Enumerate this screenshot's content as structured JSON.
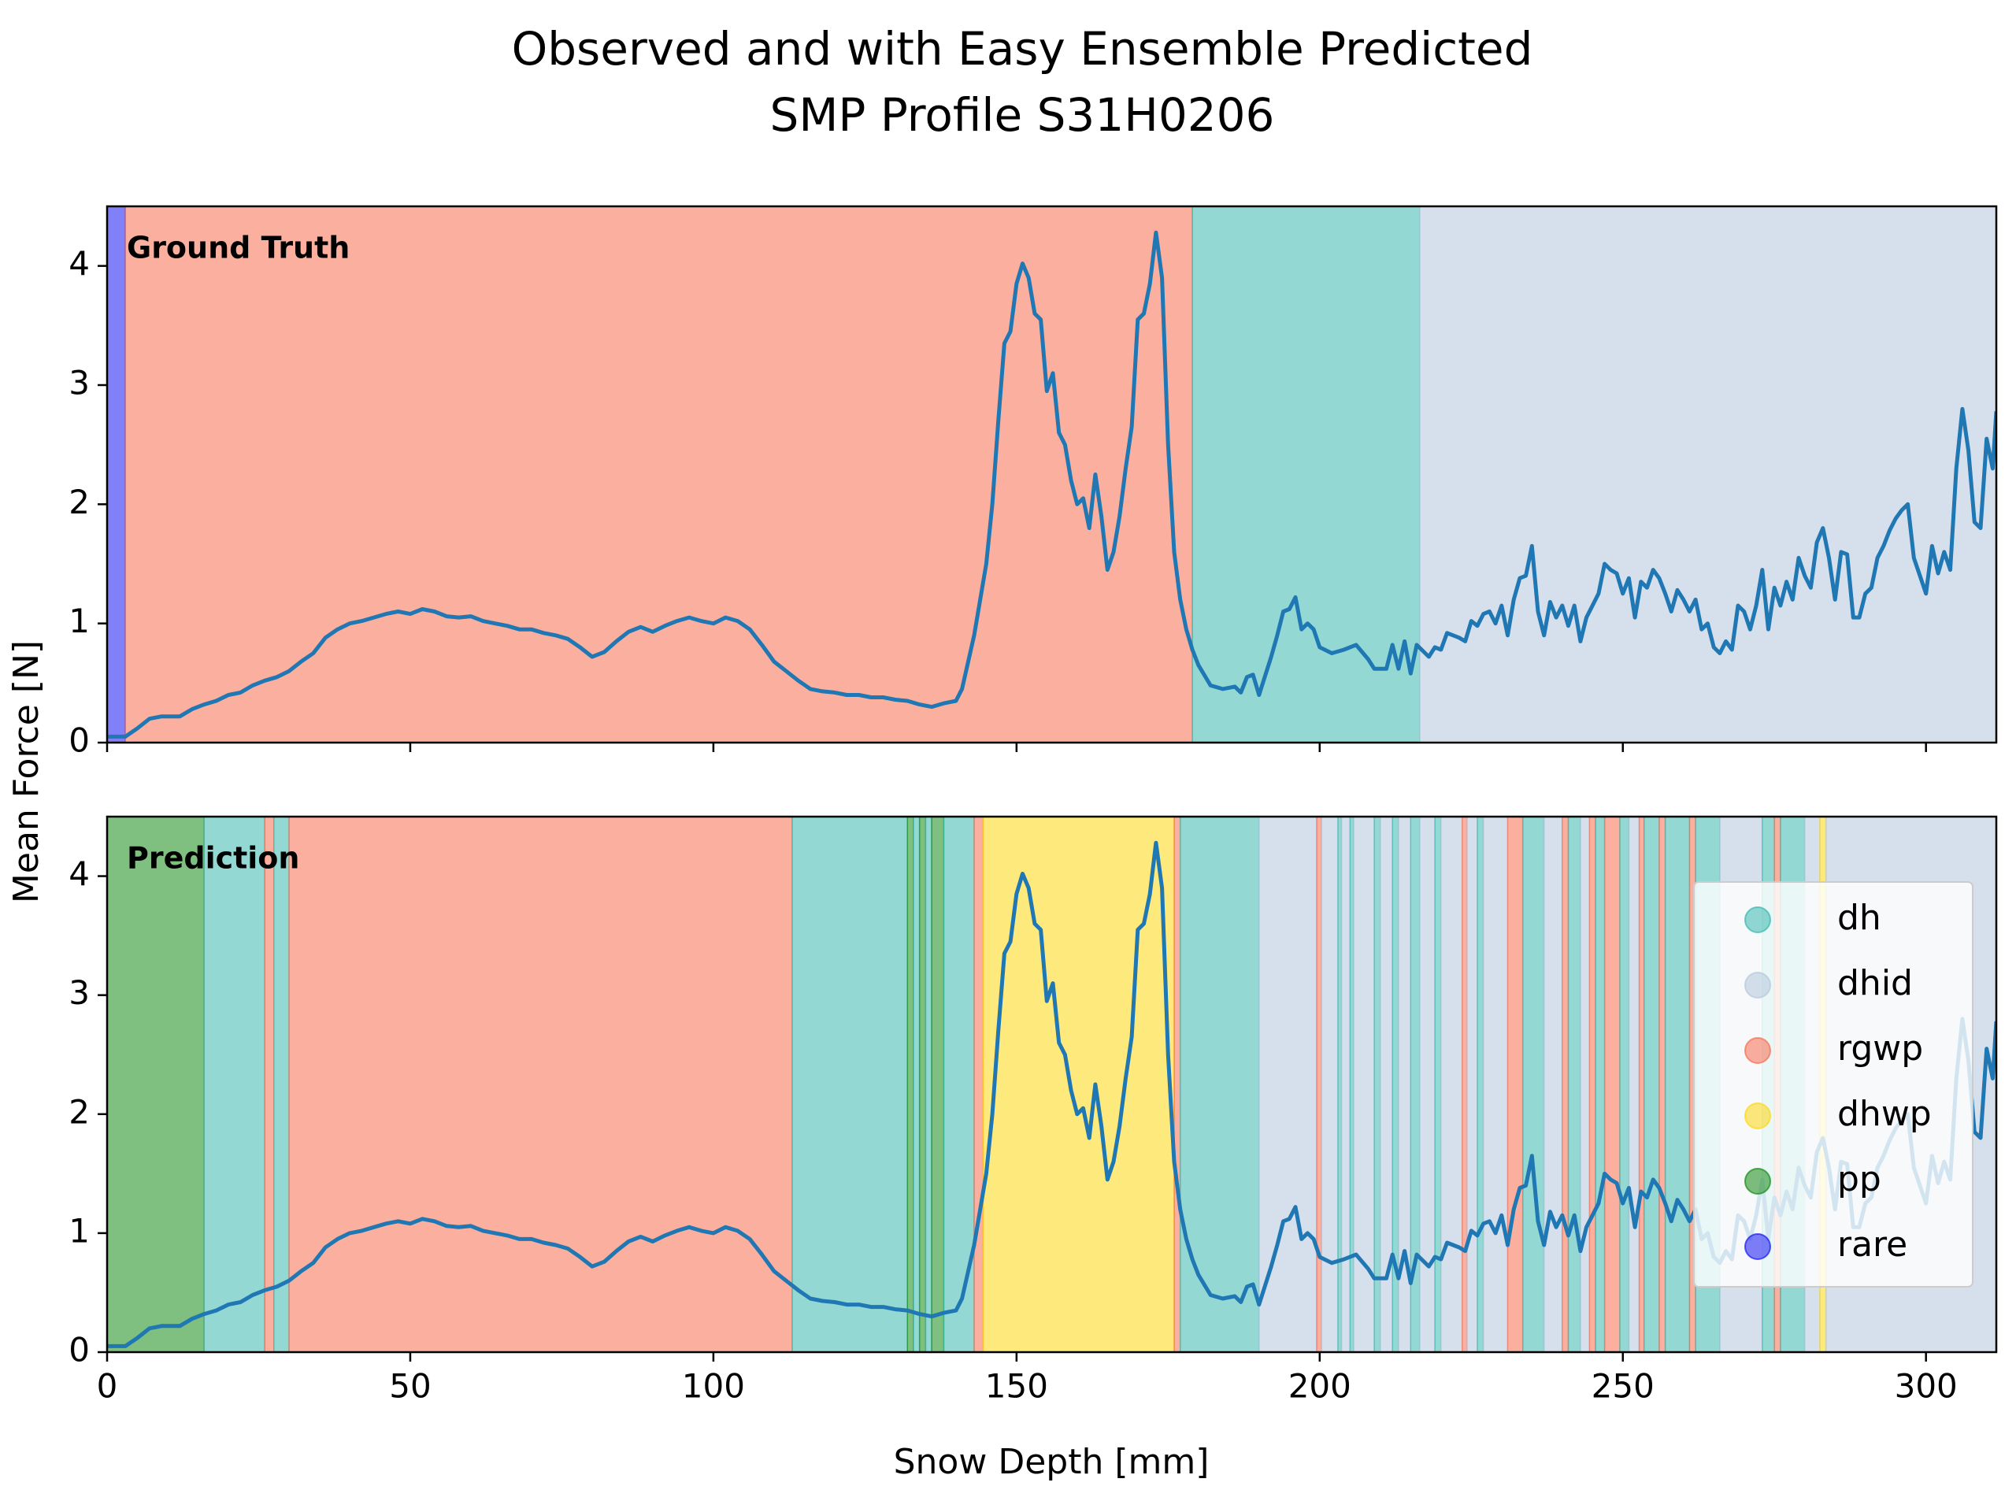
{
  "chart_data": {
    "type": "line",
    "title": "Observed and with Easy Ensemble Predicted",
    "subtitle": "SMP Profile S31H0206",
    "xlabel": "Snow Depth [mm]",
    "ylabel": "Mean Force [N]",
    "xlim": [
      0,
      311.6
    ],
    "xticks": [
      0,
      50,
      100,
      150,
      200,
      250,
      300
    ],
    "ylim": [
      0,
      4.5
    ],
    "yticks": [
      0,
      1,
      2,
      3,
      4
    ],
    "color": "#1f77b4",
    "legend_position": "center right",
    "legend": [
      {
        "name": "dh",
        "color": "#3ab8af"
      },
      {
        "name": "dhid",
        "color": "#b5c7dd"
      },
      {
        "name": "rgwp",
        "color": "#f76d50"
      },
      {
        "name": "dhwp",
        "color": "#fdd711"
      },
      {
        "name": "pp",
        "color": "#168b16"
      },
      {
        "name": "rare",
        "color": "#1818f2"
      }
    ],
    "x": [
      0,
      3,
      5,
      7,
      9,
      12,
      14,
      16,
      18,
      20,
      22,
      24,
      26,
      28,
      30,
      32,
      34,
      36,
      38,
      40,
      42,
      44,
      46,
      48,
      50,
      52,
      54,
      56,
      58,
      60,
      62,
      64,
      66,
      68,
      70,
      72,
      74,
      76,
      78,
      80,
      82,
      84,
      86,
      88,
      90,
      92,
      94,
      96,
      98,
      100,
      102,
      104,
      106,
      108,
      110,
      112,
      114,
      116,
      118,
      120,
      122,
      124,
      126,
      128,
      130,
      132,
      134,
      136,
      138,
      140,
      141,
      143,
      145,
      146,
      147,
      148,
      149,
      150,
      151,
      152,
      153,
      154,
      155,
      156,
      157,
      158,
      159,
      160,
      161,
      162,
      163,
      164,
      165,
      166,
      167,
      168,
      169,
      170,
      171,
      172,
      173,
      174,
      175,
      176,
      177,
      178,
      179,
      180,
      182,
      184,
      186,
      187,
      188,
      189,
      190,
      192,
      193,
      194,
      195,
      196,
      197,
      198,
      199,
      200,
      202,
      204,
      206,
      208,
      209,
      211,
      212,
      213,
      214,
      215,
      216,
      218,
      219,
      220,
      221,
      223,
      224,
      225,
      226,
      227,
      228,
      229,
      230,
      231,
      232,
      233,
      234,
      235,
      236,
      237,
      238,
      239,
      240,
      241,
      242,
      243,
      244,
      245,
      246,
      247,
      248,
      249,
      250,
      251,
      252,
      253,
      254,
      255,
      256,
      257,
      258,
      259,
      260,
      261,
      262,
      263,
      264,
      265,
      266,
      267,
      268,
      269,
      270,
      271,
      272,
      273,
      274,
      275,
      276,
      277,
      278,
      279,
      280,
      281,
      282,
      283,
      284,
      285,
      286,
      287,
      288,
      289,
      290,
      291,
      292,
      293,
      294,
      295,
      296,
      297,
      298,
      299,
      300,
      301,
      302,
      303,
      304,
      305,
      306,
      307,
      308,
      309,
      310,
      311,
      311.6
    ],
    "values": [
      0.05,
      0.05,
      0.12,
      0.2,
      0.22,
      0.22,
      0.28,
      0.32,
      0.35,
      0.4,
      0.42,
      0.48,
      0.52,
      0.55,
      0.6,
      0.68,
      0.75,
      0.88,
      0.95,
      1.0,
      1.02,
      1.05,
      1.08,
      1.1,
      1.08,
      1.12,
      1.1,
      1.06,
      1.05,
      1.06,
      1.02,
      1.0,
      0.98,
      0.95,
      0.95,
      0.92,
      0.9,
      0.87,
      0.8,
      0.72,
      0.76,
      0.85,
      0.93,
      0.97,
      0.93,
      0.98,
      1.02,
      1.05,
      1.02,
      1.0,
      1.05,
      1.02,
      0.95,
      0.82,
      0.68,
      0.6,
      0.52,
      0.45,
      0.43,
      0.42,
      0.4,
      0.4,
      0.38,
      0.38,
      0.36,
      0.35,
      0.32,
      0.3,
      0.33,
      0.35,
      0.45,
      0.9,
      1.5,
      2.0,
      2.7,
      3.35,
      3.45,
      3.85,
      4.02,
      3.9,
      3.6,
      3.55,
      2.95,
      3.1,
      2.6,
      2.5,
      2.2,
      2.0,
      2.05,
      1.8,
      2.25,
      1.9,
      1.45,
      1.6,
      1.9,
      2.3,
      2.65,
      3.55,
      3.6,
      3.85,
      4.28,
      3.9,
      2.5,
      1.6,
      1.2,
      0.95,
      0.78,
      0.65,
      0.48,
      0.45,
      0.47,
      0.42,
      0.55,
      0.57,
      0.4,
      0.72,
      0.9,
      1.1,
      1.12,
      1.22,
      0.95,
      1.0,
      0.95,
      0.8,
      0.75,
      0.78,
      0.82,
      0.7,
      0.62,
      0.62,
      0.82,
      0.62,
      0.85,
      0.58,
      0.82,
      0.72,
      0.8,
      0.78,
      0.92,
      0.88,
      0.85,
      1.02,
      0.98,
      1.08,
      1.1,
      1.0,
      1.15,
      0.9,
      1.2,
      1.38,
      1.4,
      1.65,
      1.1,
      0.9,
      1.18,
      1.05,
      1.15,
      0.98,
      1.15,
      0.85,
      1.05,
      1.15,
      1.25,
      1.5,
      1.45,
      1.42,
      1.25,
      1.38,
      1.05,
      1.35,
      1.3,
      1.45,
      1.38,
      1.25,
      1.1,
      1.28,
      1.2,
      1.1,
      1.2,
      0.95,
      1.0,
      0.8,
      0.75,
      0.85,
      0.78,
      1.15,
      1.1,
      0.95,
      1.15,
      1.45,
      0.95,
      1.3,
      1.15,
      1.35,
      1.2,
      1.55,
      1.4,
      1.3,
      1.68,
      1.8,
      1.55,
      1.2,
      1.6,
      1.58,
      1.05,
      1.05,
      1.25,
      1.3,
      1.55,
      1.65,
      1.78,
      1.88,
      1.95,
      2.0,
      1.55,
      1.4,
      1.25,
      1.65,
      1.42,
      1.6,
      1.45,
      2.3,
      2.8,
      2.45,
      1.85,
      1.8,
      2.55,
      2.3,
      2.78
    ],
    "panels": [
      {
        "label": "Ground Truth",
        "spans": [
          {
            "class": "rare",
            "start": 0,
            "end": 3
          },
          {
            "class": "rgwp",
            "start": 3,
            "end": 179
          },
          {
            "class": "dh",
            "start": 179,
            "end": 216.5
          },
          {
            "class": "dhid",
            "start": 216.5,
            "end": 311.6
          }
        ]
      },
      {
        "label": "Prediction",
        "spans": [
          {
            "class": "pp",
            "start": 0,
            "end": 16
          },
          {
            "class": "dh",
            "start": 16,
            "end": 26
          },
          {
            "class": "rgwp",
            "start": 26,
            "end": 27.5
          },
          {
            "class": "dh",
            "start": 27.5,
            "end": 30
          },
          {
            "class": "rgwp",
            "start": 30,
            "end": 113
          },
          {
            "class": "dh",
            "start": 113,
            "end": 132
          },
          {
            "class": "pp",
            "start": 132,
            "end": 133
          },
          {
            "class": "dh",
            "start": 133,
            "end": 134
          },
          {
            "class": "pp",
            "start": 134,
            "end": 135
          },
          {
            "class": "dh",
            "start": 135,
            "end": 136
          },
          {
            "class": "pp",
            "start": 136,
            "end": 138
          },
          {
            "class": "dh",
            "start": 138,
            "end": 143
          },
          {
            "class": "rgwp",
            "start": 143,
            "end": 144.5
          },
          {
            "class": "dhwp",
            "start": 144.5,
            "end": 176
          },
          {
            "class": "rgwp",
            "start": 176,
            "end": 177
          },
          {
            "class": "dh",
            "start": 177,
            "end": 190
          },
          {
            "class": "dhid",
            "start": 190,
            "end": 199.5
          },
          {
            "class": "rgwp",
            "start": 199.5,
            "end": 200.3
          },
          {
            "class": "dhid",
            "start": 200.3,
            "end": 203
          },
          {
            "class": "dh",
            "start": 203,
            "end": 203.6
          },
          {
            "class": "dhid",
            "start": 203.6,
            "end": 205
          },
          {
            "class": "dh",
            "start": 205,
            "end": 205.6
          },
          {
            "class": "dhid",
            "start": 205.6,
            "end": 209
          },
          {
            "class": "dh",
            "start": 209,
            "end": 210
          },
          {
            "class": "dhid",
            "start": 210,
            "end": 212
          },
          {
            "class": "dh",
            "start": 212,
            "end": 213
          },
          {
            "class": "dhid",
            "start": 213,
            "end": 215
          },
          {
            "class": "dh",
            "start": 215,
            "end": 216.5
          },
          {
            "class": "dhid",
            "start": 216.5,
            "end": 219
          },
          {
            "class": "dh",
            "start": 219,
            "end": 220
          },
          {
            "class": "dhid",
            "start": 220,
            "end": 223.5
          },
          {
            "class": "rgwp",
            "start": 223.5,
            "end": 224.3
          },
          {
            "class": "dhid",
            "start": 224.3,
            "end": 226
          },
          {
            "class": "dh",
            "start": 226,
            "end": 227
          },
          {
            "class": "dhid",
            "start": 227,
            "end": 231
          },
          {
            "class": "rgwp",
            "start": 231,
            "end": 233.5
          },
          {
            "class": "dh",
            "start": 233.5,
            "end": 237
          },
          {
            "class": "dhid",
            "start": 237,
            "end": 240
          },
          {
            "class": "rgwp",
            "start": 240,
            "end": 241
          },
          {
            "class": "dh",
            "start": 241,
            "end": 243
          },
          {
            "class": "dhid",
            "start": 243,
            "end": 244.5
          },
          {
            "class": "rgwp",
            "start": 244.5,
            "end": 245.5
          },
          {
            "class": "dh",
            "start": 245.5,
            "end": 247
          },
          {
            "class": "rgwp",
            "start": 247,
            "end": 249.5
          },
          {
            "class": "dh",
            "start": 249.5,
            "end": 251
          },
          {
            "class": "dhid",
            "start": 251,
            "end": 252.7
          },
          {
            "class": "rgwp",
            "start": 252.7,
            "end": 253.5
          },
          {
            "class": "dh",
            "start": 253.5,
            "end": 256
          },
          {
            "class": "rgwp",
            "start": 256,
            "end": 257
          },
          {
            "class": "dh",
            "start": 257,
            "end": 261
          },
          {
            "class": "rgwp",
            "start": 261,
            "end": 262
          },
          {
            "class": "dh",
            "start": 262,
            "end": 266
          },
          {
            "class": "dhid",
            "start": 266,
            "end": 273
          },
          {
            "class": "dh",
            "start": 273,
            "end": 275
          },
          {
            "class": "rgwp",
            "start": 275,
            "end": 276
          },
          {
            "class": "dh",
            "start": 276,
            "end": 280
          },
          {
            "class": "dhid",
            "start": 280,
            "end": 282.5
          },
          {
            "class": "dhwp",
            "start": 282.5,
            "end": 283.5
          },
          {
            "class": "dhid",
            "start": 283.5,
            "end": 311.6
          }
        ]
      }
    ]
  }
}
